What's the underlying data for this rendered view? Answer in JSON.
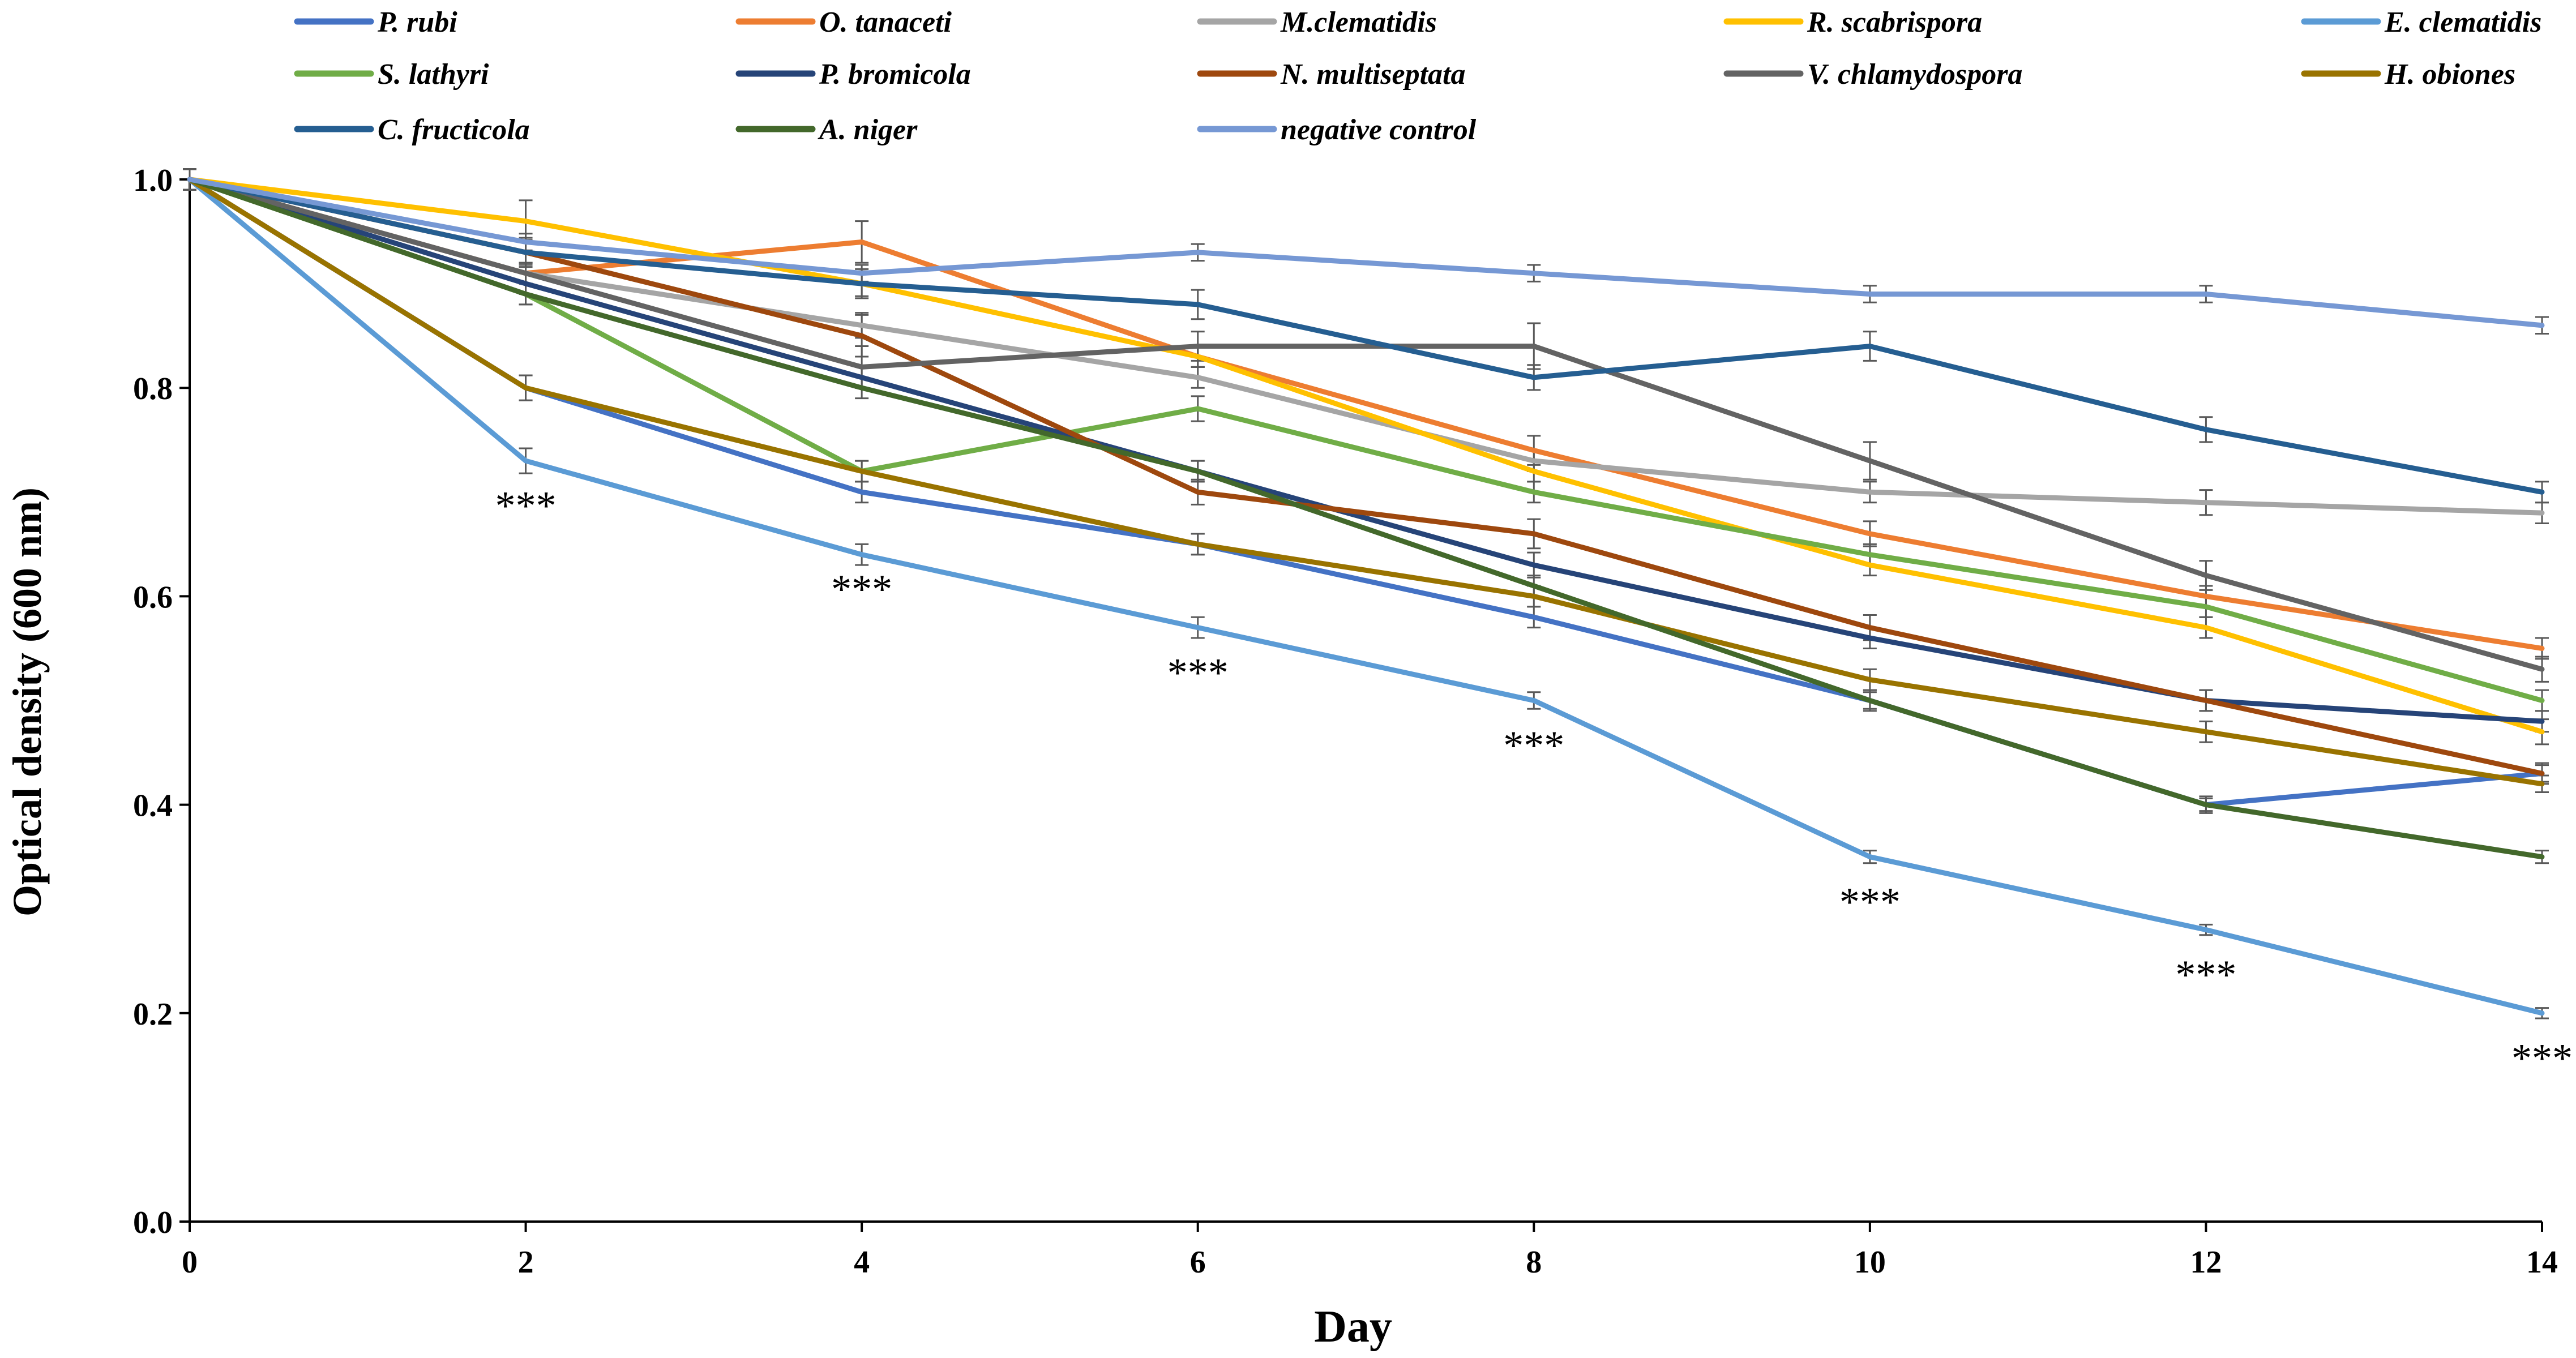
{
  "chart_data": {
    "type": "line",
    "title": "",
    "xlabel": "Day",
    "ylabel": "Optical density (600 nm)",
    "x": [
      0,
      2,
      4,
      6,
      8,
      10,
      12,
      14
    ],
    "xlim": [
      0,
      14
    ],
    "ylim": [
      0,
      1.0
    ],
    "xticks": [
      0,
      2,
      4,
      6,
      8,
      10,
      12,
      14
    ],
    "xtick_labels": [
      "0",
      "2",
      "4",
      "6",
      "8",
      "10",
      "12",
      "14"
    ],
    "yticks": [
      0,
      0.2,
      0.4,
      0.6,
      0.8,
      1.0
    ],
    "ytick_labels": [
      "0.0",
      "0.2",
      "0.4",
      "0.6",
      "0.8",
      "1.0"
    ],
    "grid": false,
    "legend_position": "top",
    "series": [
      {
        "name": "P. rubi",
        "color": "#4472C4",
        "values": [
          1.0,
          0.8,
          0.7,
          0.65,
          0.58,
          0.5,
          0.4,
          0.43
        ],
        "error": [
          0.01,
          0.012,
          0.01,
          0.01,
          0.01,
          0.01,
          0.008,
          0.008
        ]
      },
      {
        "name": "O. tanaceti",
        "color": "#ED7D31",
        "values": [
          1.0,
          0.91,
          0.94,
          0.83,
          0.74,
          0.66,
          0.6,
          0.55
        ],
        "error": [
          0.01,
          0.01,
          0.02,
          0.01,
          0.014,
          0.012,
          0.01,
          0.01
        ]
      },
      {
        "name": "M.clematidis",
        "color": "#A5A5A5",
        "values": [
          1.0,
          0.91,
          0.86,
          0.81,
          0.73,
          0.7,
          0.69,
          0.68
        ],
        "error": [
          0.01,
          0.01,
          0.012,
          0.01,
          0.01,
          0.01,
          0.012,
          0.01
        ]
      },
      {
        "name": "R. scabrispora",
        "color": "#FFC000",
        "values": [
          1.0,
          0.96,
          0.9,
          0.83,
          0.72,
          0.63,
          0.57,
          0.47
        ],
        "error": [
          0.01,
          0.02,
          0.012,
          0.01,
          0.01,
          0.01,
          0.01,
          0.012
        ]
      },
      {
        "name": "E. clematidis",
        "color": "#5B9BD5",
        "values": [
          1.0,
          0.73,
          0.64,
          0.57,
          0.5,
          0.35,
          0.28,
          0.2
        ],
        "error": [
          0.01,
          0.012,
          0.01,
          0.01,
          0.008,
          0.006,
          0.005,
          0.005
        ]
      },
      {
        "name": "S. lathyri",
        "color": "#70AD47",
        "values": [
          1.0,
          0.89,
          0.72,
          0.78,
          0.7,
          0.64,
          0.59,
          0.5
        ],
        "error": [
          0.01,
          0.01,
          0.01,
          0.012,
          0.01,
          0.01,
          0.01,
          0.01
        ]
      },
      {
        "name": "P. bromicola",
        "color": "#264478",
        "values": [
          1.0,
          0.9,
          0.81,
          0.72,
          0.63,
          0.56,
          0.5,
          0.48
        ],
        "error": [
          0.01,
          0.01,
          0.01,
          0.01,
          0.012,
          0.01,
          0.01,
          0.01
        ]
      },
      {
        "name": "N. multiseptata",
        "color": "#9E480E",
        "values": [
          1.0,
          0.93,
          0.85,
          0.7,
          0.66,
          0.57,
          0.5,
          0.43
        ],
        "error": [
          0.01,
          0.014,
          0.02,
          0.012,
          0.014,
          0.012,
          0.01,
          0.01
        ]
      },
      {
        "name": "V. chlamydospora",
        "color": "#636363",
        "values": [
          1.0,
          0.91,
          0.82,
          0.84,
          0.84,
          0.73,
          0.62,
          0.53
        ],
        "error": [
          0.01,
          0.01,
          0.02,
          0.014,
          0.022,
          0.018,
          0.014,
          0.012
        ]
      },
      {
        "name": "H. obiones",
        "color": "#997300",
        "values": [
          1.0,
          0.8,
          0.72,
          0.65,
          0.6,
          0.52,
          0.47,
          0.42
        ],
        "error": [
          0.01,
          0.012,
          0.01,
          0.01,
          0.01,
          0.01,
          0.01,
          0.008
        ]
      },
      {
        "name": "C. fructicola",
        "color": "#255E91",
        "values": [
          1.0,
          0.93,
          0.9,
          0.88,
          0.81,
          0.84,
          0.76,
          0.7
        ],
        "error": [
          0.01,
          0.012,
          0.014,
          0.014,
          0.012,
          0.014,
          0.012,
          0.01
        ]
      },
      {
        "name": "A. niger",
        "color": "#43682B",
        "values": [
          1.0,
          0.89,
          0.8,
          0.72,
          0.61,
          0.5,
          0.4,
          0.35
        ],
        "error": [
          0.01,
          0.01,
          0.01,
          0.01,
          0.01,
          0.008,
          0.006,
          0.006
        ]
      },
      {
        "name": "negative control",
        "color": "#7698D4",
        "values": [
          1.0,
          0.94,
          0.91,
          0.93,
          0.91,
          0.89,
          0.89,
          0.86
        ],
        "error": [
          0.01,
          0.008,
          0.008,
          0.008,
          0.008,
          0.008,
          0.008,
          0.008
        ]
      }
    ],
    "annotations": [
      {
        "text": "***",
        "x": 2,
        "y": 0.69
      },
      {
        "text": "***",
        "x": 4,
        "y": 0.61
      },
      {
        "text": "***",
        "x": 6,
        "y": 0.53
      },
      {
        "text": "***",
        "x": 8,
        "y": 0.46
      },
      {
        "text": "***",
        "x": 10,
        "y": 0.31
      },
      {
        "text": "***",
        "x": 12,
        "y": 0.24
      },
      {
        "text": "***",
        "x": 14,
        "y": 0.16
      }
    ]
  }
}
